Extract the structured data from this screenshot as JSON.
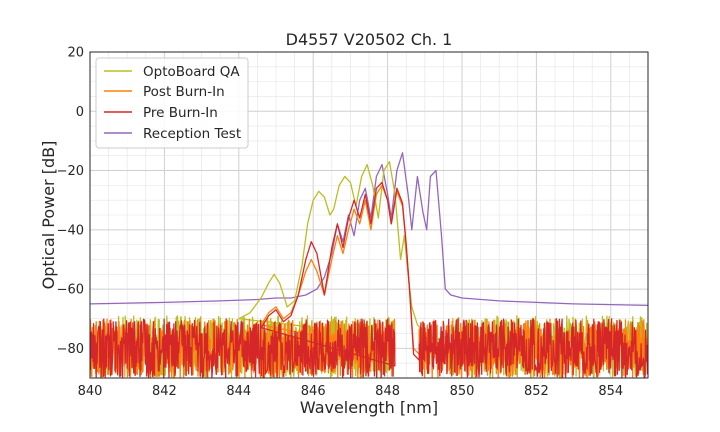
{
  "chart_data": {
    "type": "line",
    "title": "D4557 V20502 Ch. 1",
    "xlabel": "Wavelength [nm]",
    "ylabel": "Optical Power [dB]",
    "xlim": [
      840,
      855
    ],
    "ylim": [
      -90,
      20
    ],
    "xticks": [
      840,
      842,
      844,
      846,
      848,
      850,
      852,
      854
    ],
    "xtick_labels": [
      "840",
      "842",
      "844",
      "846",
      "848",
      "850",
      "852",
      "854"
    ],
    "yticks": [
      20,
      0,
      -20,
      -40,
      -60,
      -80
    ],
    "ytick_labels": [
      "20",
      "0",
      "−20",
      "−40",
      "−60",
      "−80"
    ],
    "grid": true,
    "legend_position": "top-left",
    "noise_floor": -90,
    "series": [
      {
        "name": "OptoBoard QA",
        "color": "#bcbd22",
        "noise": {
          "from": 840,
          "to": 848.2,
          "ymin": -90,
          "ymax": -69
        },
        "points": [
          [
            844.0,
            -70
          ],
          [
            844.3,
            -68
          ],
          [
            844.6,
            -63
          ],
          [
            844.8,
            -58
          ],
          [
            844.95,
            -55
          ],
          [
            845.1,
            -58
          ],
          [
            845.3,
            -66
          ],
          [
            845.5,
            -64
          ],
          [
            845.7,
            -52
          ],
          [
            845.85,
            -38
          ],
          [
            846.0,
            -30
          ],
          [
            846.15,
            -27
          ],
          [
            846.3,
            -29
          ],
          [
            846.45,
            -35
          ],
          [
            846.55,
            -33
          ],
          [
            846.7,
            -25
          ],
          [
            846.85,
            -22
          ],
          [
            847.0,
            -24
          ],
          [
            847.15,
            -32
          ],
          [
            847.3,
            -22
          ],
          [
            847.45,
            -18
          ],
          [
            847.6,
            -25
          ],
          [
            847.75,
            -36
          ],
          [
            847.9,
            -20
          ],
          [
            848.05,
            -17
          ],
          [
            848.2,
            -28
          ],
          [
            848.35,
            -50
          ],
          [
            848.45,
            -42
          ],
          [
            848.55,
            -55
          ],
          [
            848.65,
            -66
          ],
          [
            848.8,
            -72
          ],
          [
            849.0,
            -75
          ],
          [
            849.3,
            -77
          ],
          [
            849.6,
            -76
          ]
        ]
      },
      {
        "name": "Post Burn-In",
        "color": "#ff7f0e",
        "noise": {
          "from": 840,
          "to": 848.2,
          "ymin": -90,
          "ymax": -70
        },
        "points": [
          [
            844.6,
            -72
          ],
          [
            844.8,
            -68
          ],
          [
            845.0,
            -66
          ],
          [
            845.2,
            -70
          ],
          [
            845.4,
            -68
          ],
          [
            845.6,
            -62
          ],
          [
            845.8,
            -54
          ],
          [
            845.95,
            -50
          ],
          [
            846.1,
            -54
          ],
          [
            846.3,
            -62
          ],
          [
            846.5,
            -50
          ],
          [
            846.65,
            -42
          ],
          [
            846.8,
            -48
          ],
          [
            846.95,
            -40
          ],
          [
            847.1,
            -33
          ],
          [
            847.25,
            -38
          ],
          [
            847.4,
            -30
          ],
          [
            847.55,
            -40
          ],
          [
            847.7,
            -28
          ],
          [
            847.85,
            -25
          ],
          [
            848.0,
            -30
          ],
          [
            848.1,
            -38
          ],
          [
            848.25,
            -27
          ],
          [
            848.4,
            -32
          ],
          [
            848.5,
            -45
          ],
          [
            848.6,
            -62
          ],
          [
            848.7,
            -80
          ],
          [
            848.85,
            -82
          ]
        ]
      },
      {
        "name": "Pre Burn-In",
        "color": "#d62728",
        "noise": {
          "from": 840,
          "to": 848.2,
          "ymin": -90,
          "ymax": -70
        },
        "points": [
          [
            844.6,
            -73
          ],
          [
            844.8,
            -69
          ],
          [
            845.0,
            -67
          ],
          [
            845.2,
            -71
          ],
          [
            845.4,
            -69
          ],
          [
            845.6,
            -62
          ],
          [
            845.8,
            -50
          ],
          [
            845.95,
            -44
          ],
          [
            846.1,
            -48
          ],
          [
            846.3,
            -62
          ],
          [
            846.5,
            -46
          ],
          [
            846.65,
            -38
          ],
          [
            846.8,
            -46
          ],
          [
            846.95,
            -36
          ],
          [
            847.1,
            -30
          ],
          [
            847.25,
            -36
          ],
          [
            847.4,
            -28
          ],
          [
            847.55,
            -38
          ],
          [
            847.7,
            -26
          ],
          [
            847.85,
            -24
          ],
          [
            848.0,
            -30
          ],
          [
            848.1,
            -38
          ],
          [
            848.25,
            -26
          ],
          [
            848.4,
            -31
          ],
          [
            848.5,
            -45
          ],
          [
            848.6,
            -62
          ],
          [
            848.7,
            -82
          ],
          [
            848.85,
            -84
          ]
        ]
      },
      {
        "name": "Reception Test",
        "color": "#9467bd",
        "noise": null,
        "points": [
          [
            840,
            -65
          ],
          [
            842,
            -64.5
          ],
          [
            843.5,
            -64
          ],
          [
            844.5,
            -63.5
          ],
          [
            845.0,
            -63
          ],
          [
            845.4,
            -63
          ],
          [
            845.8,
            -62
          ],
          [
            846.1,
            -60
          ],
          [
            846.3,
            -56
          ],
          [
            846.5,
            -48
          ],
          [
            846.65,
            -38
          ],
          [
            846.8,
            -44
          ],
          [
            846.95,
            -35
          ],
          [
            847.1,
            -42
          ],
          [
            847.25,
            -30
          ],
          [
            847.4,
            -26
          ],
          [
            847.55,
            -36
          ],
          [
            847.7,
            -22
          ],
          [
            847.85,
            -18
          ],
          [
            848.0,
            -28
          ],
          [
            848.1,
            -36
          ],
          [
            848.25,
            -20
          ],
          [
            848.4,
            -14
          ],
          [
            848.55,
            -28
          ],
          [
            848.65,
            -40
          ],
          [
            848.8,
            -22
          ],
          [
            848.95,
            -34
          ],
          [
            849.05,
            -40
          ],
          [
            849.15,
            -22
          ],
          [
            849.3,
            -20
          ],
          [
            849.45,
            -42
          ],
          [
            849.55,
            -60
          ],
          [
            849.7,
            -62
          ],
          [
            850,
            -63
          ],
          [
            851,
            -64
          ],
          [
            852,
            -64.5
          ],
          [
            853,
            -65
          ],
          [
            855,
            -65.5
          ]
        ]
      }
    ]
  }
}
